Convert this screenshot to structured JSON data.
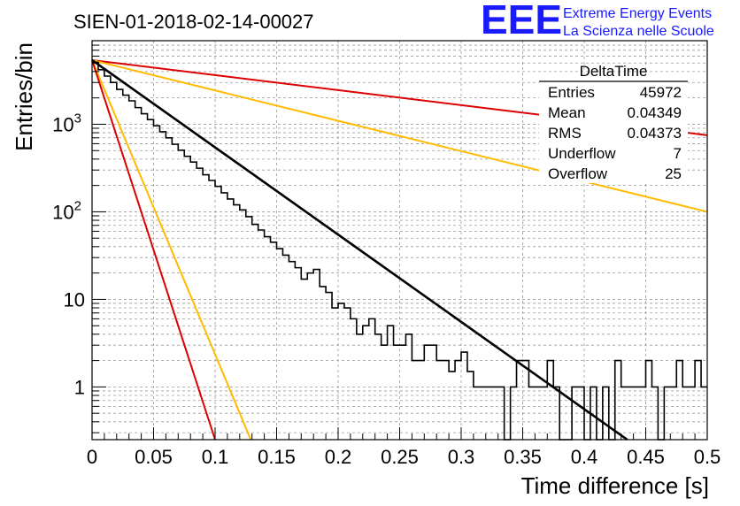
{
  "header": {
    "title": "SIEN-01-2018-02-14-00027",
    "logo_text": "EEE",
    "logo_line1": "Extreme Energy Events",
    "logo_line2": "La Scienza nelle Scuole"
  },
  "stats_box": {
    "name": "DeltaTime",
    "rows": [
      {
        "label": "Entries",
        "value": "45972"
      },
      {
        "label": "Mean",
        "value": "0.04349"
      },
      {
        "label": "RMS",
        "value": "0.04373"
      },
      {
        "label": "Underflow",
        "value": "7"
      },
      {
        "label": "Overflow",
        "value": "25"
      }
    ]
  },
  "colors": {
    "histogram": "#000000",
    "fit": "#000000",
    "red_lines": "#dd0000",
    "orange_lines": "#ffbb00",
    "grid": "#999999",
    "logo": "#1a1aff"
  },
  "chart_data": {
    "type": "histogram",
    "xlabel": "Time difference [s]",
    "ylabel": "Entries/bin",
    "xlim": [
      0,
      0.5
    ],
    "ylog": true,
    "ylim": [
      0.25,
      9000
    ],
    "grid": true,
    "x_ticks": [
      "0",
      "0.05",
      "0.1",
      "0.15",
      "0.2",
      "0.25",
      "0.3",
      "0.35",
      "0.4",
      "0.45",
      "0.5"
    ],
    "y_ticks": [
      {
        "value": 1,
        "base": "1",
        "exp": ""
      },
      {
        "value": 10,
        "base": "10",
        "exp": ""
      },
      {
        "value": 100,
        "base": "10",
        "exp": "2"
      },
      {
        "value": 1000,
        "base": "10",
        "exp": "3"
      }
    ],
    "bin_width": 0.005,
    "bin_counts": [
      5100,
      4200,
      3550,
      3000,
      2500,
      2150,
      1850,
      1550,
      1320,
      1130,
      960,
      820,
      700,
      590,
      505,
      430,
      370,
      315,
      265,
      228,
      195,
      165,
      140,
      120,
      105,
      88,
      72,
      62,
      52,
      45,
      38,
      32,
      27,
      23,
      17,
      20,
      22,
      14,
      12,
      8,
      9,
      8,
      6,
      4,
      5,
      6,
      4,
      3,
      5,
      3,
      3,
      4,
      2,
      2,
      3,
      3,
      2,
      2,
      1.5,
      2,
      2.5,
      1.5,
      1,
      1,
      1,
      1,
      1,
      0,
      1,
      2,
      2,
      1,
      1,
      1,
      2,
      1,
      0,
      0,
      1,
      1,
      0,
      1,
      0,
      1,
      0,
      2,
      1,
      1,
      1,
      1,
      2,
      1,
      0,
      1,
      1,
      2,
      1,
      1,
      2,
      1
    ],
    "fit": {
      "x": [
        0,
        0.435
      ],
      "y": [
        5400,
        0.25
      ]
    },
    "reference_lines": [
      {
        "color": "red",
        "x": [
          0,
          0.5
        ],
        "y": [
          5400,
          750
        ]
      },
      {
        "color": "orange",
        "x": [
          0,
          0.5
        ],
        "y": [
          5400,
          100
        ]
      },
      {
        "color": "orange",
        "x": [
          0,
          0.129
        ],
        "y": [
          5400,
          0.25
        ]
      },
      {
        "color": "red",
        "x": [
          0,
          0.1
        ],
        "y": [
          5400,
          0.25
        ]
      }
    ]
  }
}
